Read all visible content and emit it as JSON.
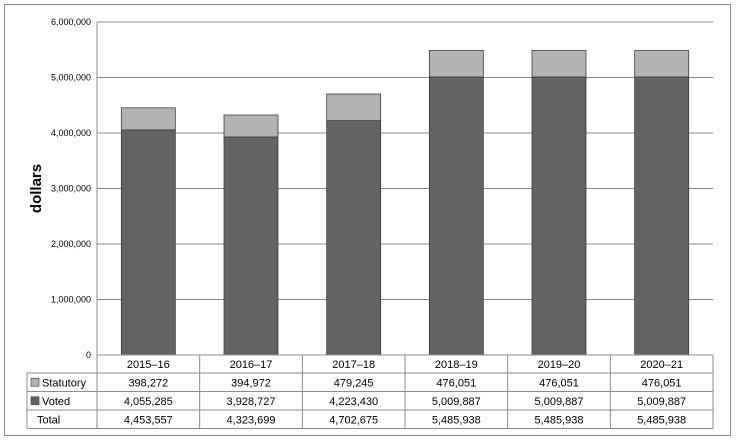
{
  "chart_data": {
    "type": "bar",
    "stacked": true,
    "categories": [
      "2015–16",
      "2016–17",
      "2017–18",
      "2018–19",
      "2019–20",
      "2020–21"
    ],
    "series": [
      {
        "name": "Voted",
        "values": [
          4055285,
          3928727,
          4223430,
          5009887,
          5009887,
          5009887
        ],
        "color": "#636363"
      },
      {
        "name": "Statutory",
        "values": [
          398272,
          394972,
          479245,
          476051,
          476051,
          476051
        ],
        "color": "#b3b3b3"
      }
    ],
    "ylabel": "dollars",
    "ylim": [
      0,
      6000000
    ],
    "yticks": [
      0,
      1000000,
      2000000,
      3000000,
      4000000,
      5000000,
      6000000
    ],
    "ytick_labels": [
      "0",
      "1,000,000",
      "2,000,000",
      "3,000,000",
      "4,000,000",
      "5,000,000",
      "6,000,000"
    ],
    "grid": true,
    "table": {
      "rows": [
        {
          "label": "Statutory",
          "swatch": "#b3b3b3",
          "cells": [
            "398,272",
            "394,972",
            "479,245",
            "476,051",
            "476,051",
            "476,051"
          ]
        },
        {
          "label": "Voted",
          "swatch": "#636363",
          "cells": [
            "4,055,285",
            "3,928,727",
            "4,223,430",
            "5,009,887",
            "5,009,887",
            "5,009,887"
          ]
        },
        {
          "label": "Total",
          "swatch": "",
          "cells": [
            "4,453,557",
            "4,323,699",
            "4,702,675",
            "5,485,938",
            "5,485,938",
            "5,485,938"
          ]
        }
      ]
    }
  }
}
